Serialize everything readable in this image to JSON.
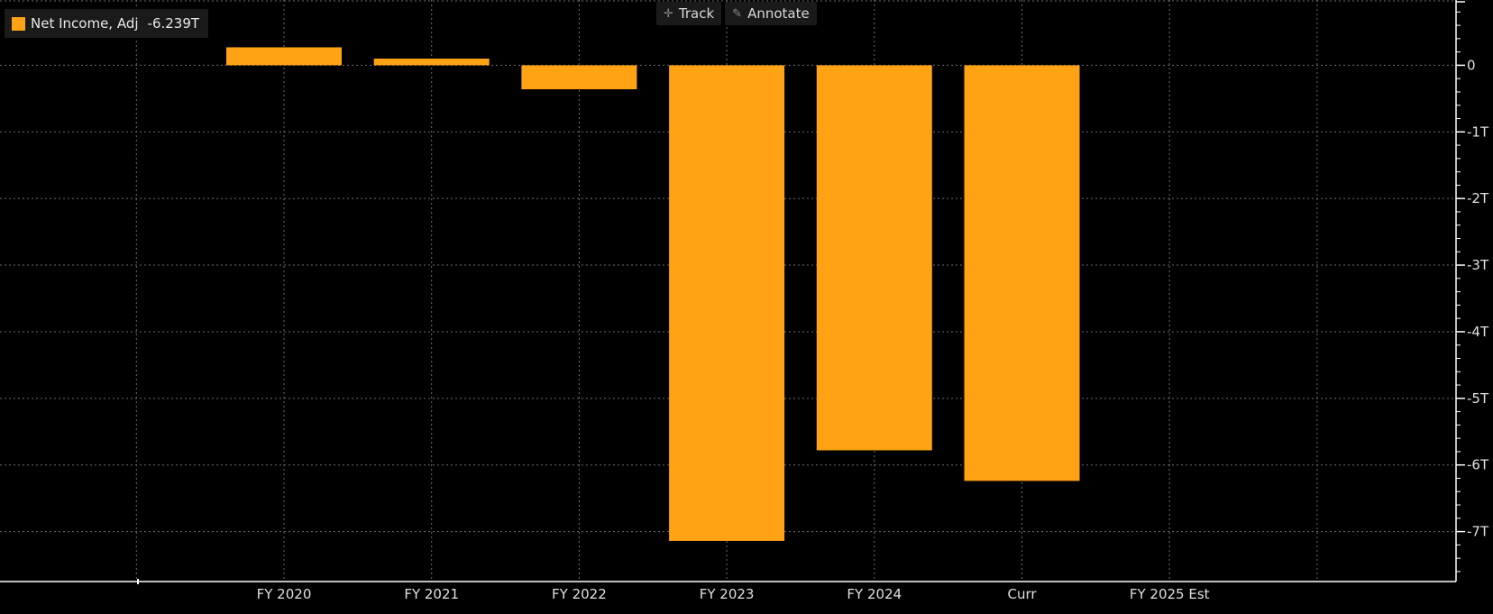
{
  "toolbar": {
    "track_label": "Track",
    "track_icon": "crosshair-icon",
    "annotate_label": "Annotate",
    "annotate_icon": "pencil-icon"
  },
  "legend": {
    "series_label": "Net Income, Adj",
    "latest_value": "-6.239T"
  },
  "colors": {
    "background": "#000000",
    "bar": "#ffa214",
    "grid": "#6e6e6e",
    "axis": "#ffffff",
    "text": "#e0e0e0"
  },
  "chart_data": {
    "type": "bar",
    "categories": [
      "FY 2020",
      "FY 2021",
      "FY 2022",
      "FY 2023",
      "FY 2024",
      "Curr",
      "FY 2025 Est"
    ],
    "series": [
      {
        "values": [
          0.27,
          0.1,
          -0.36,
          -7.14,
          -5.78,
          -6.239,
          null
        ]
      }
    ],
    "unit": "T",
    "y_ticks": [
      0,
      -1,
      -2,
      -3,
      -4,
      -5,
      -6,
      -7
    ],
    "y_tick_labels": [
      "0",
      "-1T",
      "-2T",
      "-3T",
      "-4T",
      "-5T",
      "-6T",
      "-7T"
    ],
    "ylim": [
      -7.75,
      0.98
    ],
    "y_axis_position": "right",
    "grid": true,
    "legend_position": "top-left",
    "title": "",
    "xlabel": "",
    "ylabel": ""
  }
}
